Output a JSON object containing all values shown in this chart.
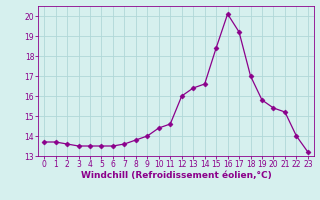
{
  "x": [
    0,
    1,
    2,
    3,
    4,
    5,
    6,
    7,
    8,
    9,
    10,
    11,
    12,
    13,
    14,
    15,
    16,
    17,
    18,
    19,
    20,
    21,
    22,
    23
  ],
  "y": [
    13.7,
    13.7,
    13.6,
    13.5,
    13.5,
    13.5,
    13.5,
    13.6,
    13.8,
    14.0,
    14.4,
    14.6,
    16.0,
    16.4,
    16.6,
    18.4,
    20.1,
    19.2,
    17.0,
    15.8,
    15.4,
    15.2,
    14.0,
    13.2
  ],
  "line_color": "#8b008b",
  "marker": "D",
  "marker_size": 2.5,
  "bg_color": "#d6f0ee",
  "grid_color": "#b0d8d8",
  "xlabel": "Windchill (Refroidissement éolien,°C)",
  "xlim": [
    -0.5,
    23.5
  ],
  "ylim": [
    13.0,
    20.5
  ],
  "yticks": [
    13,
    14,
    15,
    16,
    17,
    18,
    19,
    20
  ],
  "xticks": [
    0,
    1,
    2,
    3,
    4,
    5,
    6,
    7,
    8,
    9,
    10,
    11,
    12,
    13,
    14,
    15,
    16,
    17,
    18,
    19,
    20,
    21,
    22,
    23
  ],
  "tick_color": "#8b008b",
  "tick_fontsize": 5.5,
  "xlabel_fontsize": 6.5
}
